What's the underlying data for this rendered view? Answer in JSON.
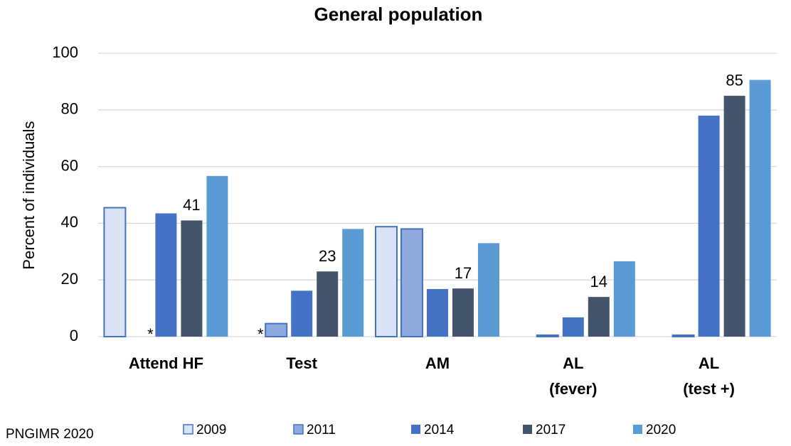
{
  "chart_data": {
    "type": "bar",
    "title": "General population",
    "ylabel": "Percent of individuals",
    "source": "PNGIMR 2020",
    "categories": [
      "Attend HF",
      "Test",
      "AM",
      "AL\n(fever)",
      "AL\n(test +)"
    ],
    "series": [
      {
        "name": "2009",
        "color": "#dae3f3",
        "edgecolor": "#4472c4",
        "values": [
          45.5,
          null,
          38.8,
          null,
          null
        ],
        "value_labels": [
          null,
          "*",
          null,
          null,
          null
        ]
      },
      {
        "name": "2011",
        "color": "#8faadc",
        "edgecolor": "#4472c4",
        "values": [
          null,
          4.6,
          38,
          0.5,
          0.5
        ],
        "value_labels": [
          "*",
          null,
          null,
          null,
          null
        ]
      },
      {
        "name": "2014",
        "color": "#4472c4",
        "values": [
          43.5,
          16.2,
          16.8,
          6.8,
          78
        ]
      },
      {
        "name": "2017",
        "color": "#44546a",
        "values": [
          41,
          23,
          17,
          14,
          85
        ],
        "data_labels": true
      },
      {
        "name": "2020",
        "color": "#5b9bd5",
        "values": [
          56.7,
          38,
          33,
          26.6,
          90.6
        ]
      }
    ],
    "ylim": [
      0,
      100
    ],
    "yticks": [
      0,
      20,
      40,
      60,
      80,
      100
    ],
    "grid": true,
    "legend": "bottom"
  }
}
